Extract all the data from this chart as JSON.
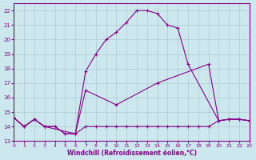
{
  "xlabel": "Windchill (Refroidissement éolien,°C)",
  "xlim": [
    0,
    23
  ],
  "ylim": [
    13,
    22.5
  ],
  "yticks": [
    13,
    14,
    15,
    16,
    17,
    18,
    19,
    20,
    21,
    22
  ],
  "xticks": [
    0,
    1,
    2,
    3,
    4,
    5,
    6,
    7,
    8,
    9,
    10,
    11,
    12,
    13,
    14,
    15,
    16,
    17,
    18,
    19,
    20,
    21,
    22,
    23
  ],
  "background_color": "#cce8ee",
  "line_color": "#880088",
  "grid_color": "#aacccc",
  "series": [
    {
      "x": [
        0,
        1,
        2,
        3,
        4,
        5,
        6,
        7,
        8,
        9,
        10,
        11,
        12,
        13,
        14,
        15,
        16,
        17,
        18,
        19,
        20,
        21,
        22,
        23
      ],
      "y": [
        14.6,
        14.0,
        14.5,
        14.0,
        14.0,
        13.5,
        13.5,
        14.0,
        14.0,
        14.0,
        14.0,
        14.0,
        14.0,
        14.0,
        14.0,
        14.0,
        14.0,
        14.0,
        14.0,
        14.0,
        14.4,
        14.5,
        14.5,
        14.4
      ]
    },
    {
      "x": [
        0,
        1,
        2,
        3,
        4,
        5,
        6,
        7,
        8,
        9,
        10,
        11,
        12,
        13,
        14,
        15,
        16,
        17,
        20,
        21,
        22,
        23
      ],
      "y": [
        14.6,
        14.0,
        14.5,
        14.0,
        14.0,
        13.5,
        13.5,
        17.8,
        19.0,
        20.0,
        20.5,
        21.2,
        22.0,
        22.0,
        21.8,
        21.0,
        20.8,
        18.3,
        14.4,
        14.5,
        14.5,
        14.4
      ]
    },
    {
      "x": [
        0,
        1,
        2,
        3,
        6,
        7,
        10,
        14,
        19,
        20,
        21,
        22,
        23
      ],
      "y": [
        14.6,
        14.0,
        14.5,
        14.0,
        13.5,
        16.5,
        15.5,
        17.0,
        18.3,
        14.4,
        14.5,
        14.5,
        14.4
      ]
    }
  ]
}
